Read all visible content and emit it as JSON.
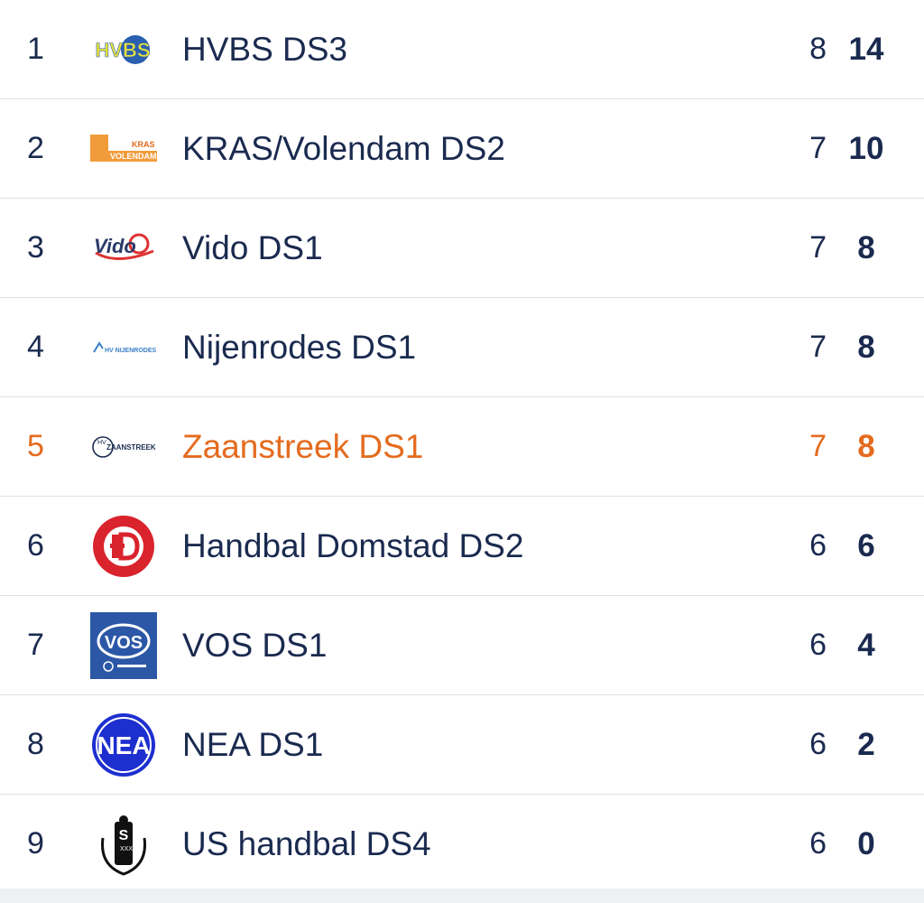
{
  "standings": {
    "rows": [
      {
        "position": "1",
        "team": "HVBS DS3",
        "played": "8",
        "points": "14",
        "logo_icon": "hvbs-logo-icon"
      },
      {
        "position": "2",
        "team": "KRAS/Volendam DS2",
        "played": "7",
        "points": "10",
        "logo_icon": "kras-volendam-logo-icon",
        "logo_text_1": "KRAS",
        "logo_text_2": "VOLENDAM"
      },
      {
        "position": "3",
        "team": "Vido DS1",
        "played": "7",
        "points": "8",
        "logo_icon": "vido-logo-icon",
        "logo_text": "Vido"
      },
      {
        "position": "4",
        "team": "Nijenrodes DS1",
        "played": "7",
        "points": "8",
        "logo_icon": "nijenrodes-logo-icon",
        "logo_text": "HV NIJENRODES"
      },
      {
        "position": "5",
        "team": "Zaanstreek DS1",
        "played": "7",
        "points": "8",
        "logo_icon": "zaanstreek-logo-icon",
        "logo_text": "ZAANSTREEK"
      },
      {
        "position": "6",
        "team": "Handbal Domstad DS2",
        "played": "6",
        "points": "6",
        "logo_icon": "domstad-logo-icon"
      },
      {
        "position": "7",
        "team": "VOS DS1",
        "played": "6",
        "points": "4",
        "logo_icon": "vos-logo-icon",
        "logo_text": "VOS"
      },
      {
        "position": "8",
        "team": "NEA DS1",
        "played": "6",
        "points": "2",
        "logo_icon": "nea-logo-icon",
        "logo_text": "NEA"
      },
      {
        "position": "9",
        "team": "US handbal DS4",
        "played": "6",
        "points": "0",
        "logo_icon": "us-logo-icon",
        "logo_text": "S"
      }
    ],
    "highlight_color": "#e46b1e",
    "text_color": "#1a2a4f"
  }
}
